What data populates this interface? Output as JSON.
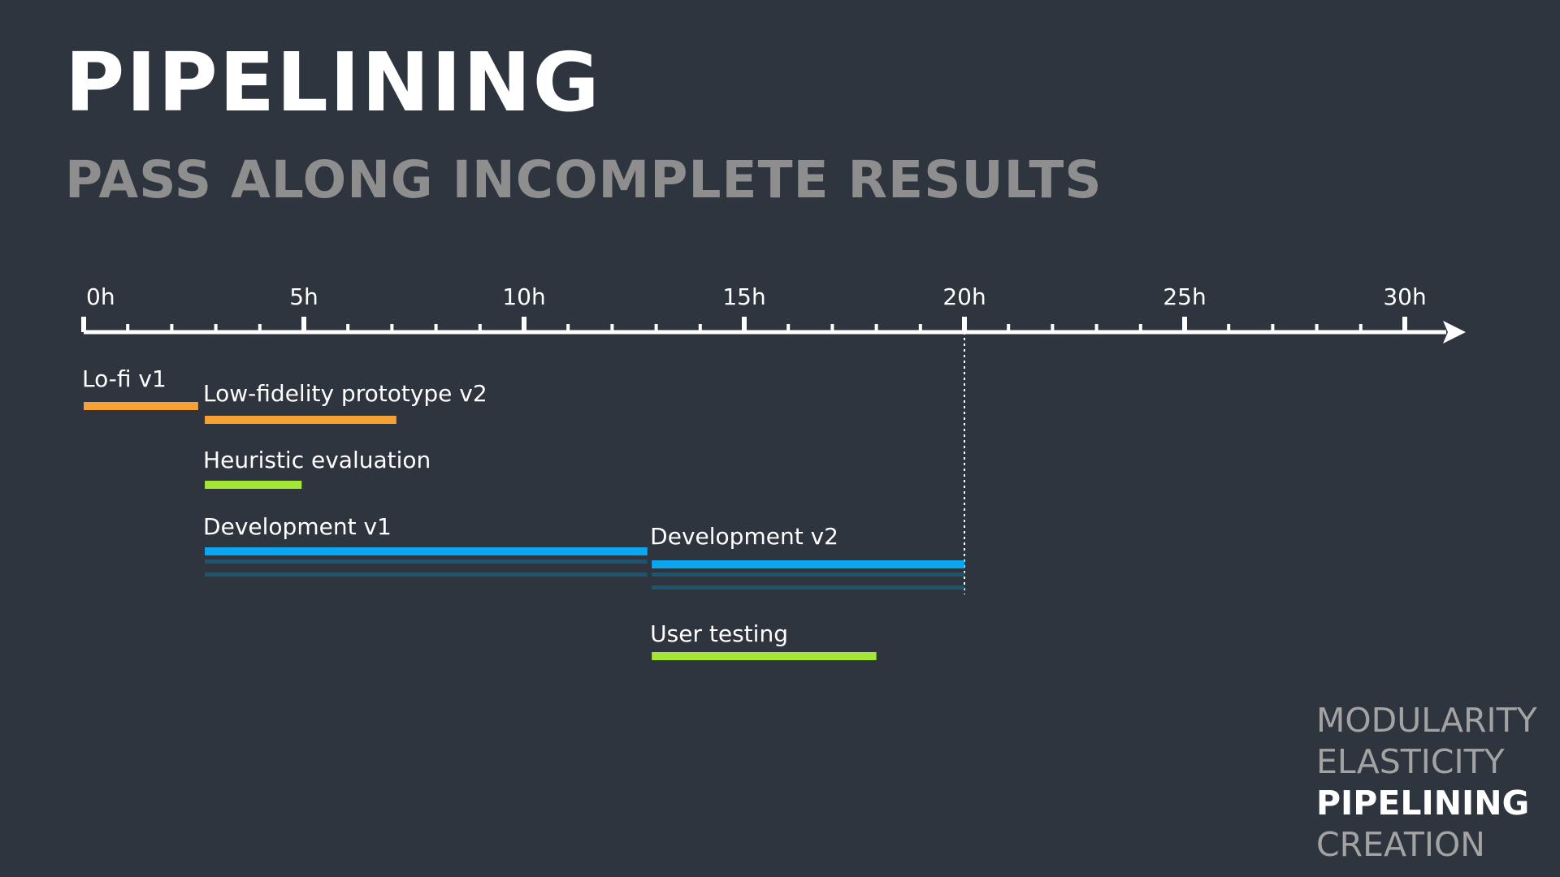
{
  "title": "PIPELINING",
  "subtitle": "PASS ALONG INCOMPLETE RESULTS",
  "colors": {
    "background": "#2f353e",
    "orange": "#f7a033",
    "green": "#a3e635",
    "blue": "#0aa7f0",
    "dark_blue": "#1e5570",
    "axis": "#ffffff",
    "muted_text": "#8e8e8e"
  },
  "timeline": {
    "unit": "h",
    "min": 0,
    "max": 30,
    "major_ticks": [
      "0h",
      "5h",
      "10h",
      "15h",
      "20h",
      "25h",
      "30h"
    ],
    "minor_tick_step": 1,
    "marker_at": 20,
    "tasks": [
      {
        "label": "Lo-fi v1",
        "start": 0,
        "end": 2.6,
        "color": "orange",
        "lines": 1
      },
      {
        "label": "Low-fidelity prototype v2",
        "start": 2.75,
        "end": 7.1,
        "color": "orange",
        "lines": 1
      },
      {
        "label": "Heuristic evaluation",
        "start": 2.75,
        "end": 4.95,
        "color": "green",
        "lines": 1
      },
      {
        "label": "Development v1",
        "start": 2.75,
        "end": 12.8,
        "color": "blue",
        "lines": 3
      },
      {
        "label": "Development v2",
        "start": 12.9,
        "end": 20,
        "color": "blue",
        "lines": 3
      },
      {
        "label": "User testing",
        "start": 12.9,
        "end": 18,
        "color": "green",
        "lines": 1
      }
    ]
  },
  "nav": {
    "items": [
      {
        "label": "MODULARITY",
        "active": false
      },
      {
        "label": "ELASTICITY",
        "active": false
      },
      {
        "label": "PIPELINING",
        "active": true
      },
      {
        "label": "CREATION",
        "active": false
      }
    ]
  }
}
